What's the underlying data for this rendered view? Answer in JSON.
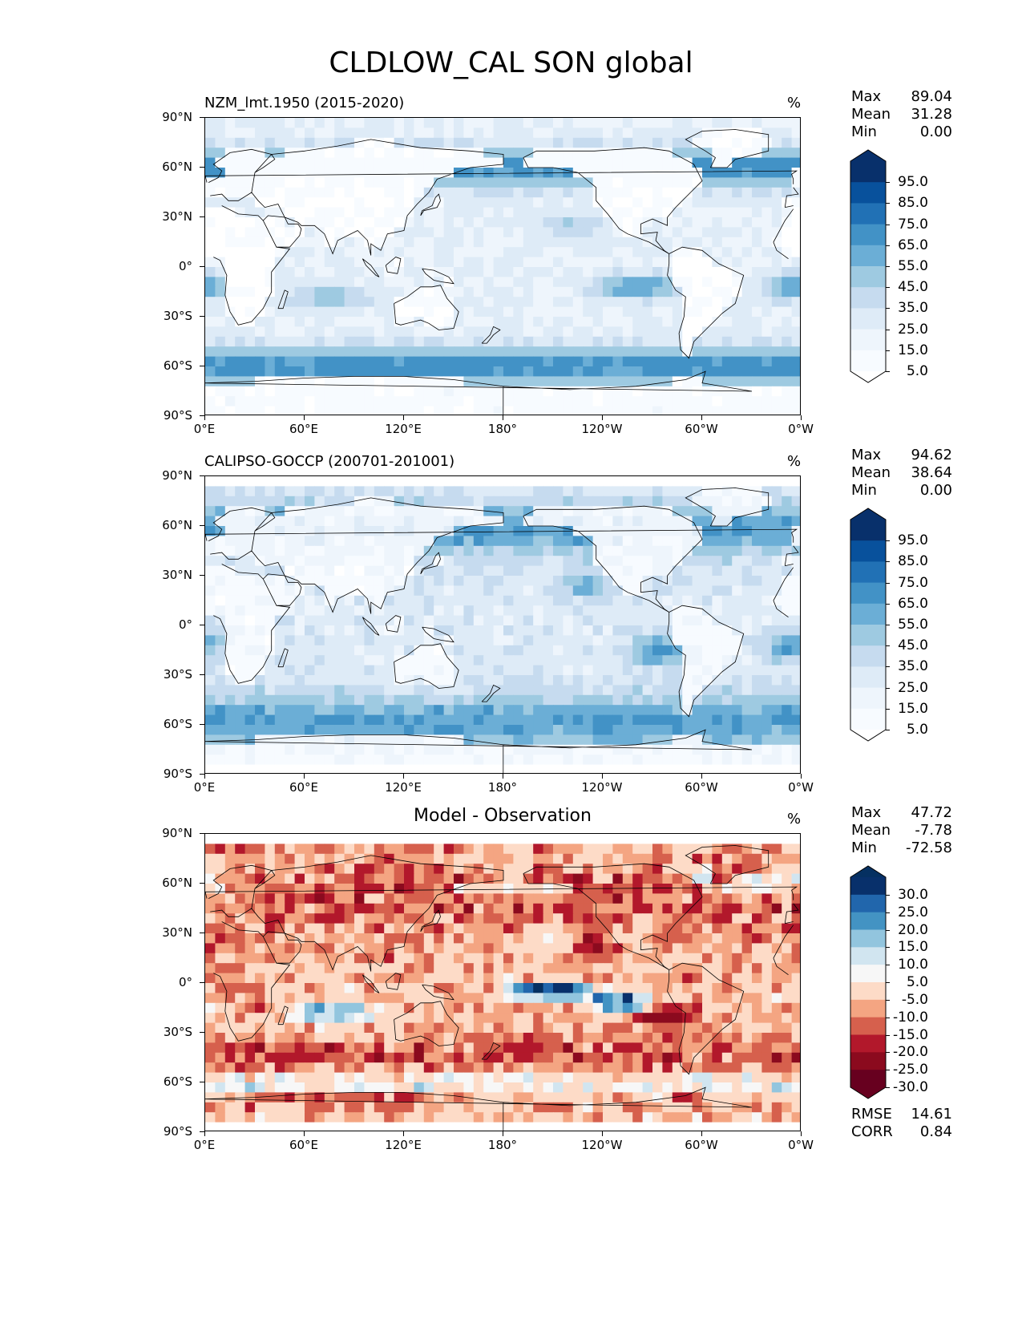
{
  "figure_title": "CLDLOW_CAL SON global",
  "panels": [
    {
      "title": "NZM_lmt.1950 (2015-2020)",
      "title_style": "left",
      "unit": "%",
      "stats": [
        {
          "label": "Max",
          "value": "89.04"
        },
        {
          "label": "Mean",
          "value": "31.28"
        },
        {
          "label": "Min",
          "value": "0.00"
        }
      ],
      "colorbar": {
        "labels": [
          "95.0",
          "85.0",
          "75.0",
          "65.0",
          "55.0",
          "45.0",
          "35.0",
          "25.0",
          "15.0",
          "5.0"
        ],
        "colors": [
          "#08306b",
          "#08519c",
          "#2171b5",
          "#4292c6",
          "#6baed6",
          "#9ecae1",
          "#c6dbef",
          "#deebf7",
          "#eef5fc",
          "#f7fbff"
        ],
        "extend_top": "#08306b",
        "extend_bottom": "#ffffff"
      },
      "field": "model",
      "extra_stats": []
    },
    {
      "title": "CALIPSO-GOCCP (200701-201001)",
      "title_style": "left",
      "unit": "%",
      "stats": [
        {
          "label": "Max",
          "value": "94.62"
        },
        {
          "label": "Mean",
          "value": "38.64"
        },
        {
          "label": "Min",
          "value": "0.00"
        }
      ],
      "colorbar": {
        "labels": [
          "95.0",
          "85.0",
          "75.0",
          "65.0",
          "55.0",
          "45.0",
          "35.0",
          "25.0",
          "15.0",
          "5.0"
        ],
        "colors": [
          "#08306b",
          "#08519c",
          "#2171b5",
          "#4292c6",
          "#6baed6",
          "#9ecae1",
          "#c6dbef",
          "#deebf7",
          "#eef5fc",
          "#f7fbff"
        ],
        "extend_top": "#08306b",
        "extend_bottom": "#ffffff"
      },
      "field": "obs",
      "extra_stats": []
    },
    {
      "title": "Model - Observation",
      "title_style": "center",
      "unit": "%",
      "stats": [
        {
          "label": "Max",
          "value": "47.72"
        },
        {
          "label": "Mean",
          "value": "-7.78"
        },
        {
          "label": "Min",
          "value": "-72.58"
        }
      ],
      "colorbar": {
        "labels": [
          "30.0",
          "25.0",
          "20.0",
          "15.0",
          "10.0",
          "5.0",
          "-5.0",
          "-10.0",
          "-15.0",
          "-20.0",
          "-25.0",
          "-30.0"
        ],
        "colors": [
          "#08306b",
          "#2166ac",
          "#4393c3",
          "#92c5de",
          "#d1e5f0",
          "#f7f7f7",
          "#fddbc7",
          "#f4a582",
          "#d6604d",
          "#b2182b",
          "#8b0a1e",
          "#67001f"
        ],
        "extend_top": "#053061",
        "extend_bottom": "#67001f"
      },
      "field": "diff",
      "extra_stats": [
        {
          "label": "RMSE",
          "value": "14.61"
        },
        {
          "label": "CORR",
          "value": "0.84"
        }
      ]
    }
  ],
  "axes": {
    "yticks": [
      "90°N",
      "60°N",
      "30°N",
      "0°",
      "30°S",
      "60°S",
      "90°S"
    ],
    "xticks": [
      "0°E",
      "60°E",
      "120°E",
      "180°",
      "120°W",
      "60°W",
      "0°W"
    ]
  },
  "colors": {
    "land_outline": "#000000",
    "ocean_blue_low": "#f7fbff",
    "ocean_blue_high": "#08306b",
    "diff_neg": "#67001f",
    "diff_pos": "#053061"
  }
}
